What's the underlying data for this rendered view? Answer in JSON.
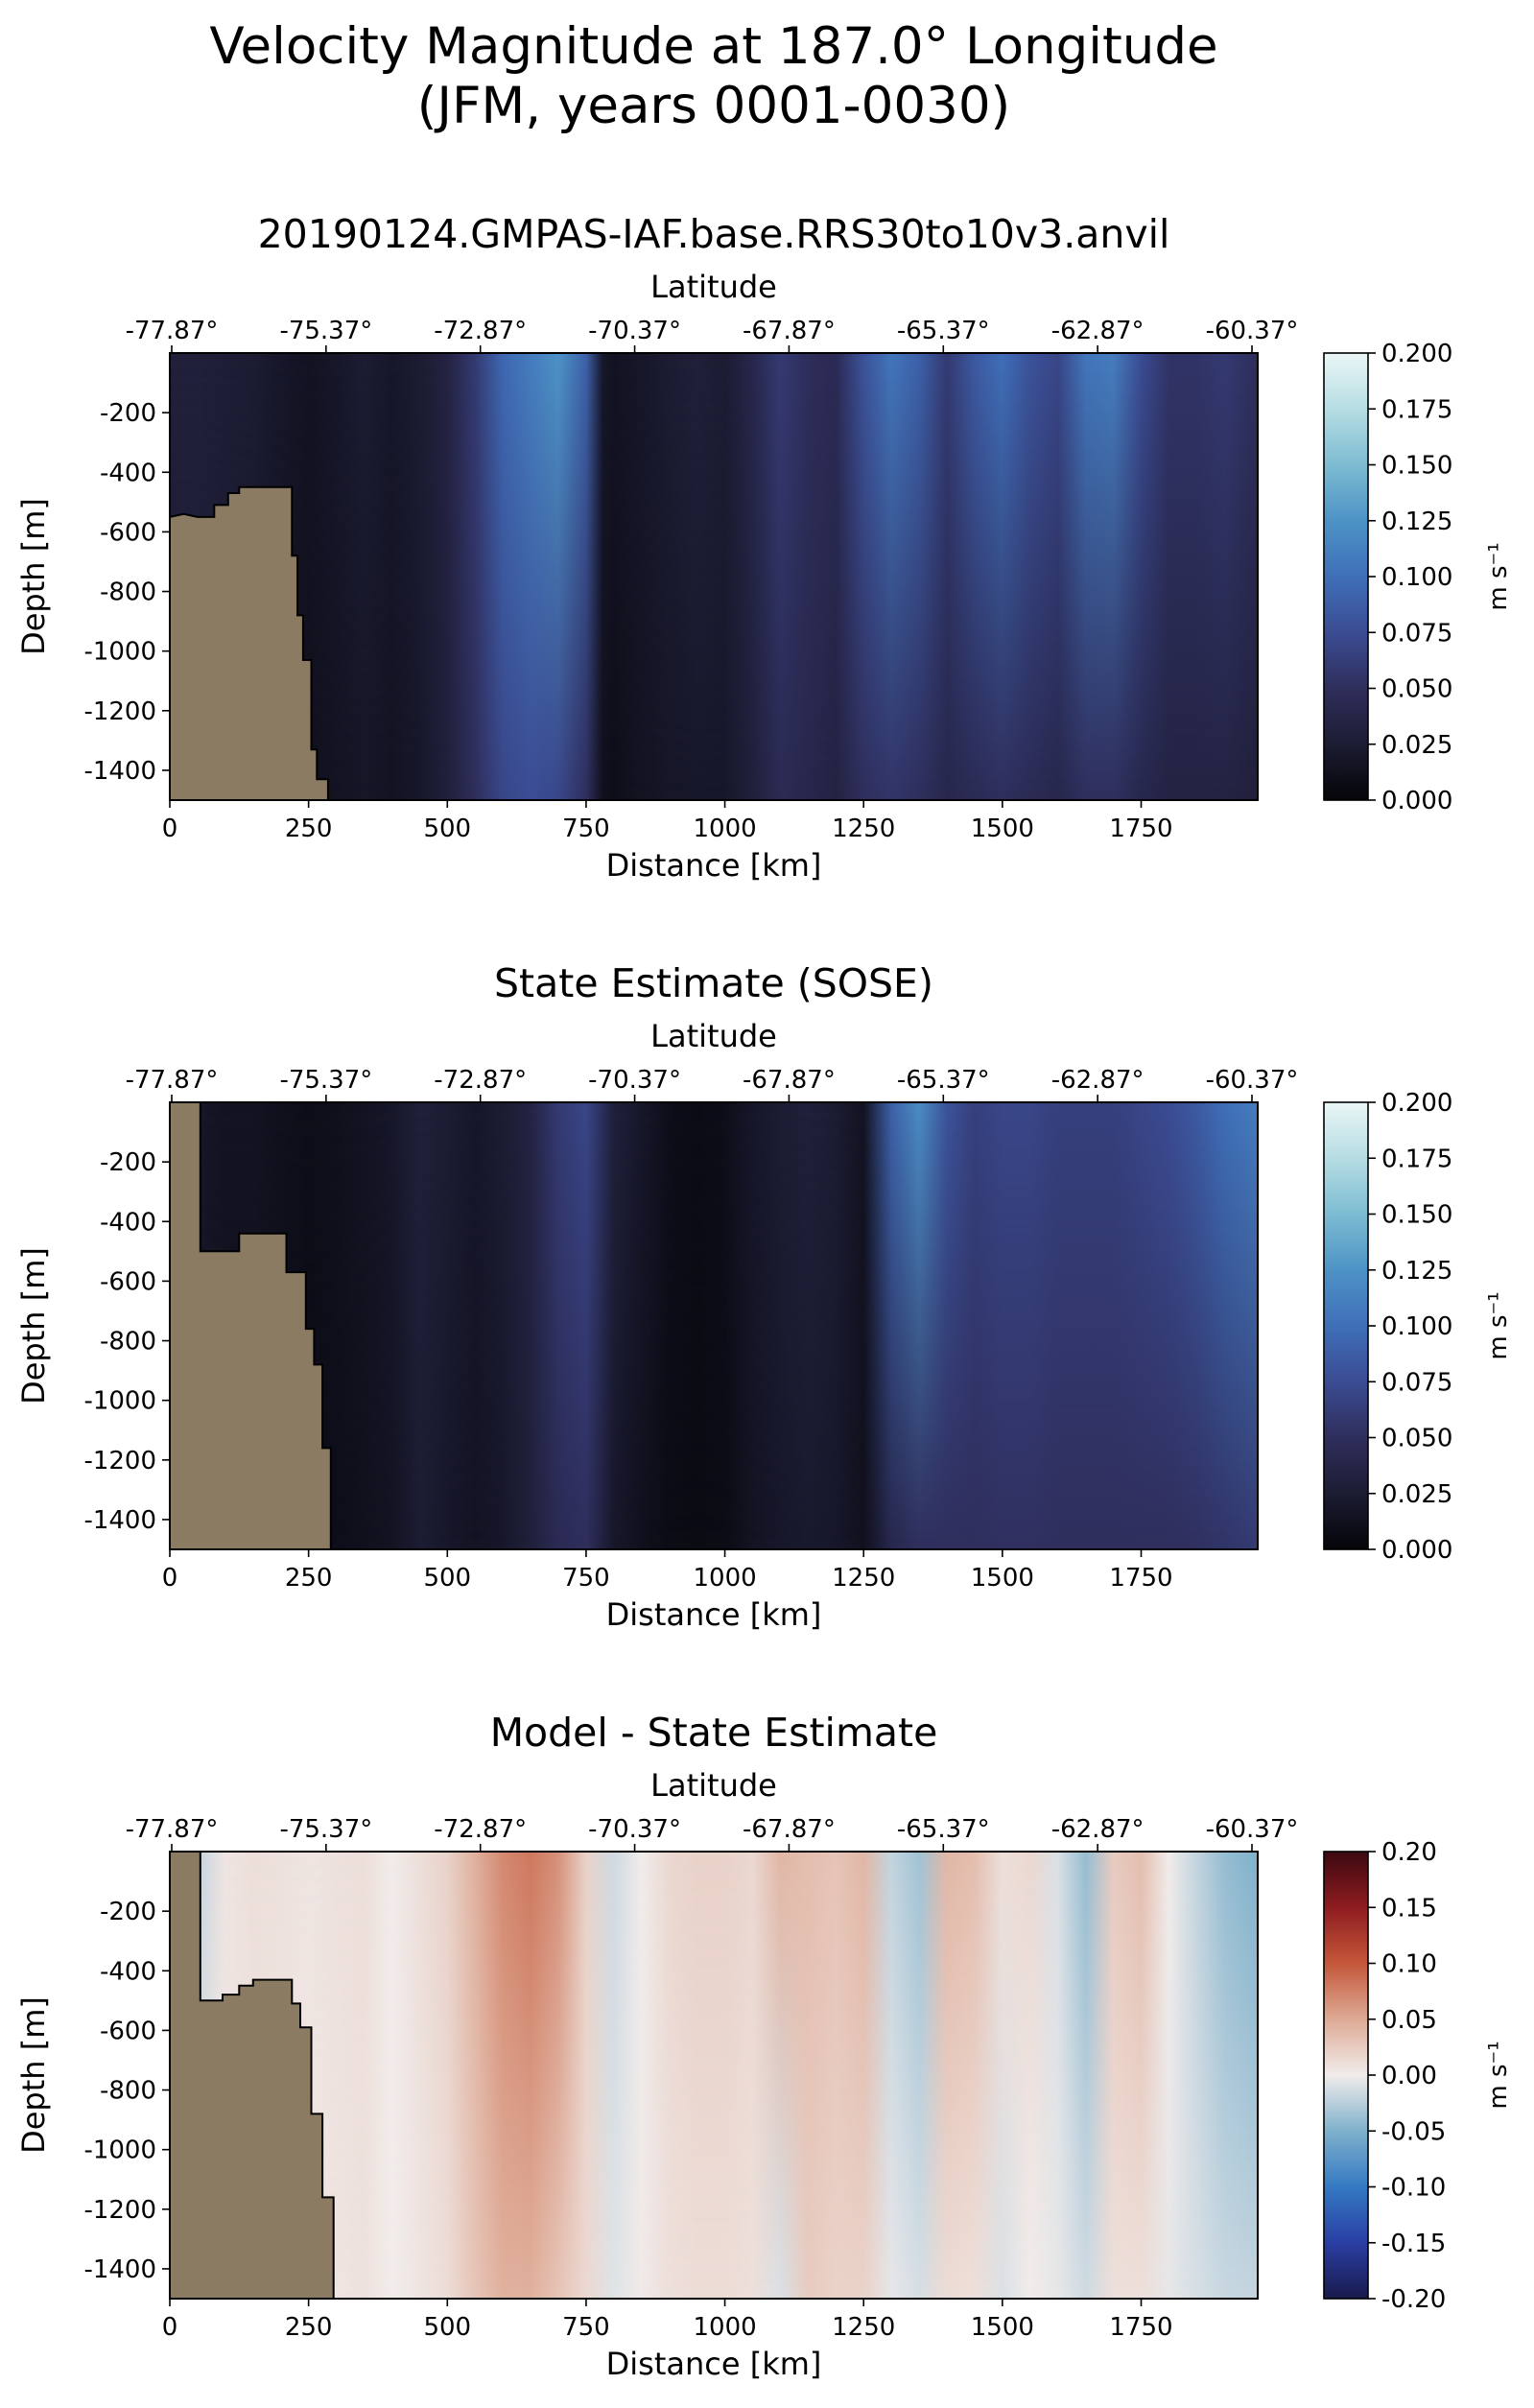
{
  "figure": {
    "title_line1": "Velocity Magnitude at 187.0° Longitude",
    "title_line2": "(JFM, years 0001-0030)"
  },
  "colors": {
    "land": "#8b7b63",
    "frame": "#000000"
  },
  "chart_data": [
    {
      "type": "heatmap",
      "title": "20190124.GMPAS-IAF.base.RRS30to10v3.anvil",
      "xlabel": "Distance [km]",
      "ylabel": "Depth [m]",
      "top_xlabel": "Latitude",
      "xlim": [
        0,
        1960
      ],
      "ylim": [
        -1500,
        0
      ],
      "xticks": [
        "0",
        "250",
        "500",
        "750",
        "1000",
        "1250",
        "1500",
        "1750"
      ],
      "yticks": [
        "-200",
        "-400",
        "-600",
        "-800",
        "-1000",
        "-1200",
        "-1400"
      ],
      "top_xticks": [
        "-77.87°",
        "-75.37°",
        "-72.87°",
        "-70.37°",
        "-67.87°",
        "-65.37°",
        "-62.87°",
        "-60.37°"
      ],
      "colorbar": {
        "label": "m s⁻¹",
        "range": [
          0.0,
          0.2
        ],
        "ticks": [
          "0.000",
          "0.025",
          "0.050",
          "0.075",
          "0.100",
          "0.125",
          "0.150",
          "0.175",
          "0.200"
        ],
        "colormap": "ice",
        "stops": [
          "#050509",
          "#1c1c33",
          "#2f2e5c",
          "#3b4c93",
          "#3f6fb8",
          "#4d93c6",
          "#7dbcd2",
          "#b6dde3",
          "#eaf6f6"
        ]
      },
      "profile": {
        "x": [
          0,
          50,
          100,
          150,
          200,
          250,
          300,
          350,
          400,
          450,
          500,
          550,
          600,
          650,
          700,
          750,
          780,
          800,
          850,
          900,
          950,
          1000,
          1050,
          1100,
          1150,
          1200,
          1250,
          1300,
          1350,
          1400,
          1450,
          1500,
          1550,
          1600,
          1650,
          1700,
          1750,
          1800,
          1850,
          1900,
          1960
        ],
        "surface": [
          0.03,
          0.03,
          0.028,
          0.025,
          0.02,
          0.015,
          0.02,
          0.025,
          0.02,
          0.025,
          0.035,
          0.06,
          0.095,
          0.11,
          0.125,
          0.09,
          0.02,
          0.015,
          0.02,
          0.025,
          0.03,
          0.025,
          0.04,
          0.06,
          0.05,
          0.045,
          0.08,
          0.105,
          0.09,
          0.06,
          0.085,
          0.1,
          0.08,
          0.07,
          0.105,
          0.11,
          0.075,
          0.055,
          0.055,
          0.06,
          0.05
        ],
        "bottom": [
          0.025,
          0.025,
          0.022,
          0.02,
          0.015,
          0.012,
          0.015,
          0.018,
          0.015,
          0.02,
          0.03,
          0.05,
          0.07,
          0.075,
          0.07,
          0.05,
          0.012,
          0.01,
          0.015,
          0.018,
          0.02,
          0.02,
          0.03,
          0.045,
          0.04,
          0.035,
          0.05,
          0.055,
          0.05,
          0.04,
          0.045,
          0.05,
          0.045,
          0.04,
          0.05,
          0.05,
          0.04,
          0.035,
          0.035,
          0.035,
          0.03
        ]
      },
      "bathymetry": [
        [
          0,
          -550
        ],
        [
          25,
          -540
        ],
        [
          50,
          -550
        ],
        [
          80,
          -550
        ],
        [
          80,
          -510
        ],
        [
          105,
          -510
        ],
        [
          105,
          -470
        ],
        [
          125,
          -470
        ],
        [
          125,
          -450
        ],
        [
          220,
          -450
        ],
        [
          220,
          -680
        ],
        [
          230,
          -680
        ],
        [
          230,
          -880
        ],
        [
          240,
          -880
        ],
        [
          240,
          -1030
        ],
        [
          255,
          -1030
        ],
        [
          255,
          -1330
        ],
        [
          265,
          -1330
        ],
        [
          265,
          -1430
        ],
        [
          285,
          -1430
        ],
        [
          285,
          -1500
        ]
      ]
    },
    {
      "type": "heatmap",
      "title": "State Estimate (SOSE)",
      "xlabel": "Distance [km]",
      "ylabel": "Depth [m]",
      "top_xlabel": "Latitude",
      "xlim": [
        0,
        1960
      ],
      "ylim": [
        -1500,
        0
      ],
      "xticks": [
        "0",
        "250",
        "500",
        "750",
        "1000",
        "1250",
        "1500",
        "1750"
      ],
      "yticks": [
        "-200",
        "-400",
        "-600",
        "-800",
        "-1000",
        "-1200",
        "-1400"
      ],
      "top_xticks": [
        "-77.87°",
        "-75.37°",
        "-72.87°",
        "-70.37°",
        "-67.87°",
        "-65.37°",
        "-62.87°",
        "-60.37°"
      ],
      "colorbar": {
        "label": "m s⁻¹",
        "range": [
          0.0,
          0.2
        ],
        "ticks": [
          "0.000",
          "0.025",
          "0.050",
          "0.075",
          "0.100",
          "0.125",
          "0.150",
          "0.175",
          "0.200"
        ],
        "colormap": "ice",
        "stops": [
          "#050509",
          "#1c1c33",
          "#2f2e5c",
          "#3b4c93",
          "#3f6fb8",
          "#4d93c6",
          "#7dbcd2",
          "#b6dde3",
          "#eaf6f6"
        ]
      },
      "profile": {
        "x": [
          0,
          50,
          100,
          150,
          200,
          250,
          300,
          350,
          400,
          450,
          500,
          550,
          600,
          650,
          700,
          750,
          800,
          850,
          900,
          950,
          1000,
          1050,
          1100,
          1150,
          1200,
          1250,
          1300,
          1350,
          1400,
          1450,
          1500,
          1550,
          1600,
          1650,
          1700,
          1750,
          1800,
          1850,
          1900,
          1960
        ],
        "surface": [
          0.02,
          0.02,
          0.015,
          0.015,
          0.012,
          0.01,
          0.012,
          0.015,
          0.02,
          0.03,
          0.025,
          0.02,
          0.025,
          0.035,
          0.06,
          0.07,
          0.03,
          0.02,
          0.01,
          0.008,
          0.01,
          0.02,
          0.025,
          0.03,
          0.025,
          0.015,
          0.09,
          0.12,
          0.08,
          0.065,
          0.07,
          0.07,
          0.065,
          0.065,
          0.065,
          0.07,
          0.075,
          0.085,
          0.1,
          0.11
        ],
        "bottom": [
          0.015,
          0.015,
          0.012,
          0.012,
          0.01,
          0.008,
          0.01,
          0.012,
          0.015,
          0.025,
          0.02,
          0.015,
          0.02,
          0.03,
          0.045,
          0.05,
          0.02,
          0.012,
          0.008,
          0.006,
          0.008,
          0.015,
          0.02,
          0.022,
          0.02,
          0.012,
          0.04,
          0.05,
          0.05,
          0.05,
          0.052,
          0.052,
          0.05,
          0.05,
          0.05,
          0.05,
          0.05,
          0.052,
          0.055,
          0.06
        ]
      },
      "bathymetry": [
        [
          0,
          0
        ],
        [
          55,
          0
        ],
        [
          55,
          -500
        ],
        [
          125,
          -500
        ],
        [
          125,
          -440
        ],
        [
          210,
          -440
        ],
        [
          210,
          -570
        ],
        [
          245,
          -570
        ],
        [
          245,
          -760
        ],
        [
          260,
          -760
        ],
        [
          260,
          -880
        ],
        [
          275,
          -880
        ],
        [
          275,
          -1160
        ],
        [
          290,
          -1160
        ],
        [
          290,
          -1500
        ]
      ]
    },
    {
      "type": "heatmap",
      "title": "Model - State Estimate",
      "xlabel": "Distance [km]",
      "ylabel": "Depth [m]",
      "top_xlabel": "Latitude",
      "xlim": [
        0,
        1960
      ],
      "ylim": [
        -1500,
        0
      ],
      "xticks": [
        "0",
        "250",
        "500",
        "750",
        "1000",
        "1250",
        "1500",
        "1750"
      ],
      "yticks": [
        "-200",
        "-400",
        "-600",
        "-800",
        "-1000",
        "-1200",
        "-1400"
      ],
      "top_xticks": [
        "-77.87°",
        "-75.37°",
        "-72.87°",
        "-70.37°",
        "-67.87°",
        "-65.37°",
        "-62.87°",
        "-60.37°"
      ],
      "colorbar": {
        "label": "m s⁻¹",
        "range": [
          -0.2,
          0.2
        ],
        "ticks": [
          "-0.20",
          "-0.15",
          "-0.10",
          "-0.05",
          "0.00",
          "0.05",
          "0.10",
          "0.15",
          "0.20"
        ],
        "colormap": "balance",
        "stops": [
          "#191a4c",
          "#2a3fa4",
          "#3479c2",
          "#7fb1cc",
          "#f1eceb",
          "#deaa95",
          "#c4573a",
          "#8e1c1f",
          "#3c0911"
        ]
      },
      "profile": {
        "x": [
          0,
          50,
          100,
          150,
          200,
          250,
          300,
          350,
          400,
          450,
          500,
          550,
          600,
          650,
          700,
          750,
          800,
          850,
          900,
          950,
          1000,
          1050,
          1100,
          1150,
          1200,
          1250,
          1300,
          1350,
          1400,
          1450,
          1500,
          1550,
          1600,
          1650,
          1700,
          1750,
          1800,
          1850,
          1900,
          1960
        ],
        "surface": [
          -0.01,
          -0.02,
          0.005,
          0.01,
          0.008,
          0.005,
          0.008,
          0.01,
          0.0,
          0.01,
          0.02,
          0.045,
          0.07,
          0.08,
          0.065,
          0.02,
          -0.015,
          0.0,
          0.015,
          0.02,
          0.02,
          0.015,
          0.04,
          0.035,
          0.03,
          0.04,
          -0.02,
          -0.035,
          0.04,
          0.035,
          0.01,
          0.015,
          -0.01,
          -0.04,
          0.025,
          0.035,
          0.0,
          -0.02,
          -0.04,
          -0.05
        ],
        "bottom": [
          0.005,
          0.005,
          0.005,
          0.005,
          0.005,
          0.005,
          0.006,
          0.008,
          0.0,
          0.006,
          0.012,
          0.03,
          0.045,
          0.045,
          0.03,
          0.015,
          -0.008,
          0.002,
          0.01,
          0.012,
          0.012,
          0.01,
          -0.01,
          0.025,
          0.02,
          0.02,
          -0.005,
          -0.012,
          0.012,
          0.01,
          -0.01,
          0.0,
          -0.005,
          -0.015,
          0.01,
          0.01,
          -0.005,
          -0.012,
          -0.018,
          -0.02
        ]
      },
      "bathymetry": [
        [
          0,
          0
        ],
        [
          55,
          0
        ],
        [
          55,
          -500
        ],
        [
          95,
          -500
        ],
        [
          95,
          -480
        ],
        [
          125,
          -480
        ],
        [
          125,
          -450
        ],
        [
          150,
          -450
        ],
        [
          150,
          -430
        ],
        [
          220,
          -430
        ],
        [
          220,
          -510
        ],
        [
          235,
          -510
        ],
        [
          235,
          -590
        ],
        [
          255,
          -590
        ],
        [
          255,
          -880
        ],
        [
          275,
          -880
        ],
        [
          275,
          -1160
        ],
        [
          295,
          -1160
        ],
        [
          295,
          -1500
        ]
      ]
    }
  ]
}
